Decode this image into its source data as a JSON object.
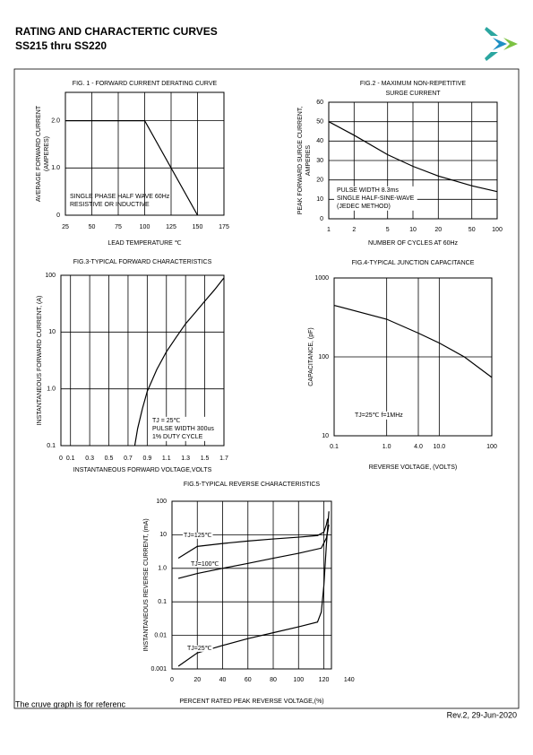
{
  "header": {
    "title": "RATING AND CHARACTERTIC CURVES",
    "subtitle": "SS215 thru SS220"
  },
  "footer": {
    "note": "The cruve graph is for referenc",
    "revision": "Rev.2, 29-Jun-2020"
  },
  "chart_data": [
    {
      "type": "line",
      "title": [
        "FIG. 1 - FORWARD CURRENT DERATING CURVE"
      ],
      "xlabel": "LEAD TEMPERATURE ℃",
      "ylabel": [
        "AVERAGE FORWARD CURRENT",
        "(AMPERES)"
      ],
      "annotations": [
        "SINGLE PHASE HALF WAVE 60Hz",
        "RESISTIVE OR INDUCTIVE"
      ],
      "xlim": [
        25,
        175
      ],
      "xticks": [
        25,
        50,
        75,
        100,
        125,
        150,
        175
      ],
      "ylim": [
        0,
        2.6
      ],
      "yticks": [
        0,
        {
          "value": 1,
          "label": "1.0"
        },
        {
          "value": 2,
          "label": "2.0"
        }
      ],
      "grid": true,
      "series": [
        {
          "color": "#000000",
          "x": [
            25,
            100,
            150
          ],
          "values": [
            2,
            2,
            0
          ]
        }
      ]
    },
    {
      "type": "line",
      "title": [
        "FIG.2 - MAXIMUM NON-REPETITIVE",
        "SURGE CURRENT"
      ],
      "xlabel": "NUMBER OF CYCLES AT 60Hz",
      "ylabel": [
        "PEAK FORWARD SURGE CURRENT,",
        "AMPERES"
      ],
      "annotations": [
        "PULSE WIDTH 8.3ms",
        "SINGLE HALF-SINE-WAVE",
        "(JEDEC METHOD)"
      ],
      "xlog": true,
      "xlim": [
        1,
        100
      ],
      "xticks": [
        1,
        2,
        5,
        10,
        20,
        50,
        100
      ],
      "ylim": [
        0,
        60
      ],
      "yticks": [
        0,
        10,
        20,
        30,
        40,
        50,
        60
      ],
      "grid": true,
      "series": [
        {
          "color": "#000000",
          "x": [
            1,
            2,
            5,
            10,
            20,
            50,
            100
          ],
          "values": [
            50,
            43,
            33,
            27,
            22,
            17,
            14
          ]
        }
      ]
    },
    {
      "type": "line",
      "title": [
        "FIG.3-TYPICAL FORWARD CHARACTERISTICS"
      ],
      "xlabel": "INSTANTANEOUS FORWARD VOLTAGE,VOLTS",
      "ylabel": [
        "INSTANTANEOUS FORWARD CURRENT, (A)"
      ],
      "annotations": [
        "TJ = 25℃",
        "PULSE WIDTH 300us",
        "1% DUTY CYCLE"
      ],
      "xlim": [
        0,
        1.7
      ],
      "xticks": [
        0,
        0.1,
        0.3,
        0.5,
        0.7,
        0.9,
        1.1,
        1.3,
        1.5,
        1.7
      ],
      "ylog": true,
      "ylim": [
        0.1,
        100
      ],
      "yticks": [
        0.1,
        {
          "value": 1,
          "label": "1.0"
        },
        10,
        100
      ],
      "grid": true,
      "series": [
        {
          "color": "#000000",
          "x": [
            0.77,
            0.8,
            0.85,
            0.9,
            1.0,
            1.1,
            1.2,
            1.3,
            1.4,
            1.5,
            1.6,
            1.7
          ],
          "values": [
            0.1,
            0.2,
            0.45,
            0.9,
            2.2,
            4.5,
            8,
            14,
            22,
            35,
            55,
            90
          ]
        }
      ]
    },
    {
      "type": "line",
      "title": [
        "FIG.4-TYPICAL JUNCTION CAPACITANCE"
      ],
      "xlabel": "REVERSE VOLTAGE, (VOLTS)",
      "ylabel": [
        "CAPACITANCE,   (pF)"
      ],
      "annotations": [
        "TJ=25℃ f=1MHz"
      ],
      "xlog": true,
      "xlim": [
        0.1,
        100
      ],
      "xticks": [
        0.1,
        {
          "value": 1,
          "label": "1.0"
        },
        {
          "value": 4,
          "label": "4.0"
        },
        {
          "value": 10,
          "label": "10.0"
        },
        100
      ],
      "ylog": true,
      "ylim": [
        10,
        1000
      ],
      "yticks": [
        10,
        100,
        1000
      ],
      "grid": true,
      "series": [
        {
          "color": "#000000",
          "x": [
            0.1,
            1,
            4,
            10,
            30,
            100
          ],
          "values": [
            450,
            300,
            200,
            150,
            100,
            55
          ]
        }
      ]
    },
    {
      "type": "line",
      "title": [
        "FIG.5-TYPICAL REVERSE CHARACTERISTICS"
      ],
      "xlabel": "PERCENT RATED PEAK REVERSE VOLTAGE,(%)",
      "ylabel": [
        "INSTANTANEOUS REVERSE CURRENT, (mA)"
      ],
      "xlim": [
        0,
        126
      ],
      "xticks": [
        0,
        20,
        40,
        60,
        80,
        100,
        120,
        140
      ],
      "ylog": true,
      "ylim": [
        0.001,
        100
      ],
      "yticks": [
        0.001,
        0.01,
        0.1,
        {
          "value": 1,
          "label": "1.0"
        },
        10,
        100
      ],
      "grid": true,
      "series": [
        {
          "name": "TJ=125℃",
          "color": "#000000",
          "x": [
            5,
            20,
            40,
            60,
            80,
            100,
            115,
            120,
            122,
            123
          ],
          "values": [
            2,
            4.5,
            5.5,
            6.5,
            7.5,
            8.5,
            9.5,
            12,
            20,
            30
          ]
        },
        {
          "name": "TJ=100℃",
          "color": "#000000",
          "x": [
            5,
            20,
            40,
            60,
            80,
            100,
            118,
            122,
            124
          ],
          "values": [
            0.5,
            0.7,
            1,
            1.4,
            2,
            2.8,
            4,
            8,
            20
          ]
        },
        {
          "name": "TJ=25℃",
          "color": "#000000",
          "x": [
            5,
            20,
            40,
            60,
            80,
            100,
            115,
            118,
            120,
            122,
            124
          ],
          "values": [
            0.0012,
            0.003,
            0.005,
            0.008,
            0.012,
            0.018,
            0.025,
            0.05,
            0.3,
            5,
            50
          ]
        }
      ]
    }
  ]
}
